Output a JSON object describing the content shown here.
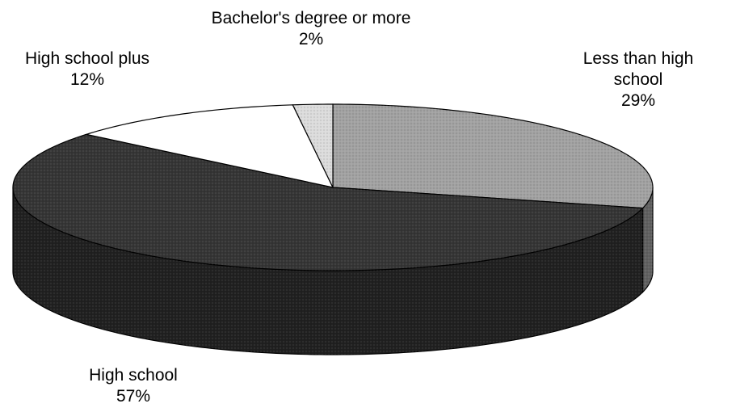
{
  "chart_data": {
    "type": "pie",
    "categories": [
      "Less than high school",
      "High school",
      "High school plus",
      "Bachelor's degree or more"
    ],
    "values": [
      29,
      57,
      12,
      2
    ],
    "value_labels": [
      "29%",
      "57%",
      "12%",
      "2%"
    ],
    "colors": [
      "#a2a2a2",
      "#353535",
      "#ffffff",
      "#dcdcdc"
    ]
  }
}
